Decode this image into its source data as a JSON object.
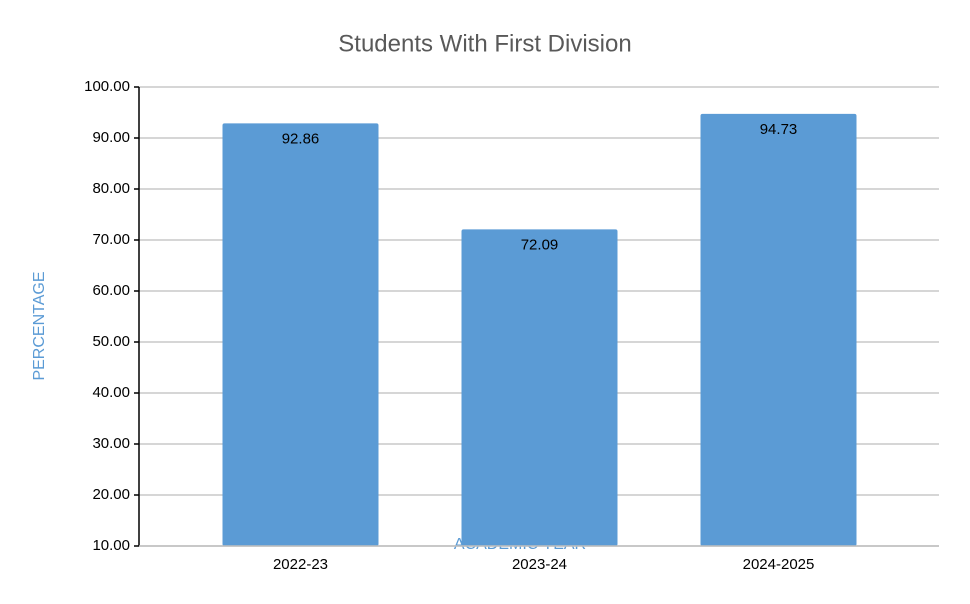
{
  "chart_data": {
    "type": "bar",
    "title": "Students With First Division",
    "x_label": "ACADEMIC YEAR",
    "y_label": "PERCENTAGE",
    "categories": [
      "2022-23",
      "2023-24",
      "2024-2025"
    ],
    "values": [
      92.86,
      72.09,
      94.73
    ],
    "color": "#5b9bd5",
    "ylim": [
      10,
      100
    ],
    "yticks": [
      {
        "value": 10,
        "label": "10.00"
      },
      {
        "value": 20,
        "label": "20.00"
      },
      {
        "value": 30,
        "label": "30.00"
      },
      {
        "value": 40,
        "label": "40.00"
      },
      {
        "value": 50,
        "label": "50.00"
      },
      {
        "value": 60,
        "label": "60.00"
      },
      {
        "value": 70,
        "label": "70.00"
      },
      {
        "value": 80,
        "label": "80.00"
      },
      {
        "value": 90,
        "label": "90.00"
      },
      {
        "value": 100,
        "label": "100.00"
      }
    ],
    "grid": true
  }
}
